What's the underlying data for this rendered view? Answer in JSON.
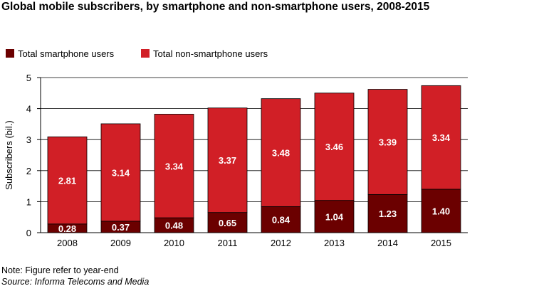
{
  "title": "Global mobile subscribers, by smartphone and non-smartphone users, 2008-2015",
  "note": "Note: Figure refer to year-end",
  "source": "Source: Informa Telecoms and Media",
  "colors": {
    "smartphone": "#6b0000",
    "non_smartphone": "#d11f26",
    "axis": "#000000"
  },
  "chart_data": {
    "type": "bar",
    "stacked": true,
    "categories": [
      "2008",
      "2009",
      "2010",
      "2011",
      "2012",
      "2013",
      "2014",
      "2015"
    ],
    "series": [
      {
        "name": "Total smartphone users",
        "values": [
          0.28,
          0.37,
          0.48,
          0.65,
          0.84,
          1.04,
          1.23,
          1.4
        ],
        "labels": [
          "0.28",
          "0.37",
          "0.48",
          "0.65",
          "0.84",
          "1.04",
          "1.23",
          "1.40"
        ]
      },
      {
        "name": "Total non-smartphone users",
        "values": [
          2.81,
          3.14,
          3.34,
          3.37,
          3.48,
          3.46,
          3.39,
          3.34
        ],
        "labels": [
          "2.81",
          "3.14",
          "3.34",
          "3.37",
          "3.48",
          "3.46",
          "3.39",
          "3.34"
        ]
      }
    ],
    "ylabel": "Subscribers (bil.)",
    "xlabel": "",
    "ylim": [
      0,
      5
    ],
    "yticks": [
      "0",
      "1",
      "2",
      "3",
      "4",
      "5"
    ],
    "grid": true,
    "legend": "top-left"
  }
}
